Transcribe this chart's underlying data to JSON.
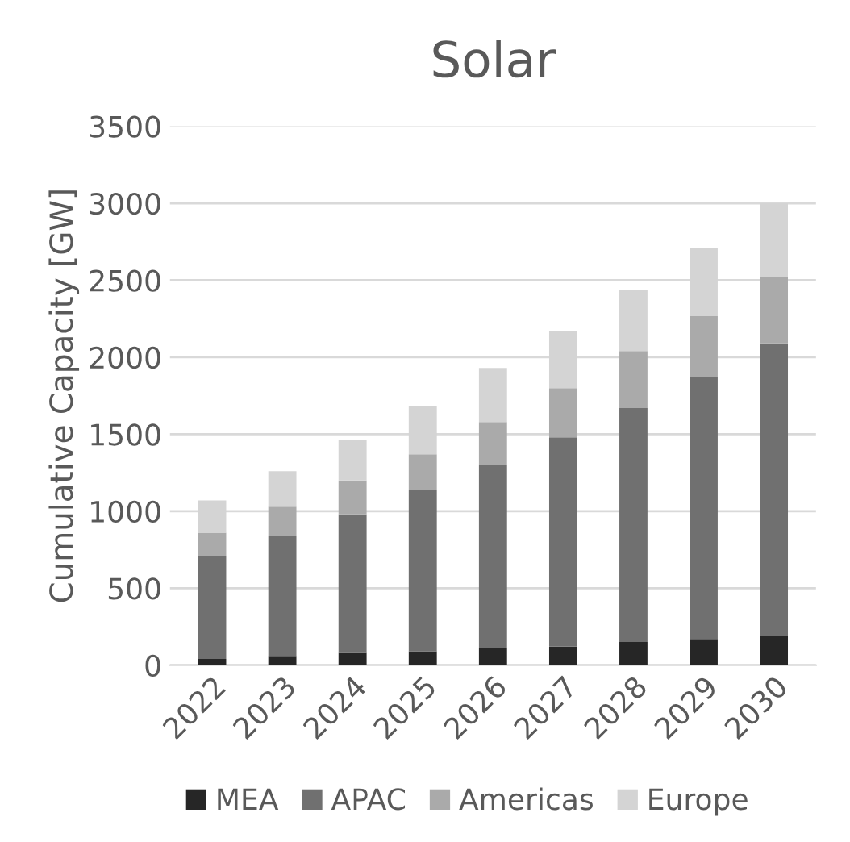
{
  "chart_data": {
    "type": "bar",
    "title": "Solar",
    "ylabel": "Cumulative Capacity [GW]",
    "stacked": true,
    "categories": [
      "2022",
      "2023",
      "2024",
      "2025",
      "2026",
      "2027",
      "2028",
      "2029",
      "2030"
    ],
    "series": [
      {
        "name": "MEA",
        "color": "#262626",
        "values": [
          40,
          60,
          80,
          90,
          110,
          120,
          150,
          170,
          190
        ]
      },
      {
        "name": "APAC",
        "color": "#707070",
        "values": [
          670,
          780,
          900,
          1050,
          1190,
          1360,
          1520,
          1700,
          1900
        ]
      },
      {
        "name": "Americas",
        "color": "#aaaaaa",
        "values": [
          150,
          190,
          220,
          230,
          280,
          320,
          370,
          400,
          430
        ]
      },
      {
        "name": "Europe",
        "color": "#d4d4d4",
        "values": [
          210,
          230,
          260,
          310,
          350,
          370,
          400,
          440,
          480
        ]
      }
    ],
    "ylim": [
      0,
      3500
    ],
    "yticks": [
      0,
      500,
      1000,
      1500,
      2000,
      2500,
      3000,
      3500
    ],
    "grid": "y",
    "legend": "bottom"
  }
}
